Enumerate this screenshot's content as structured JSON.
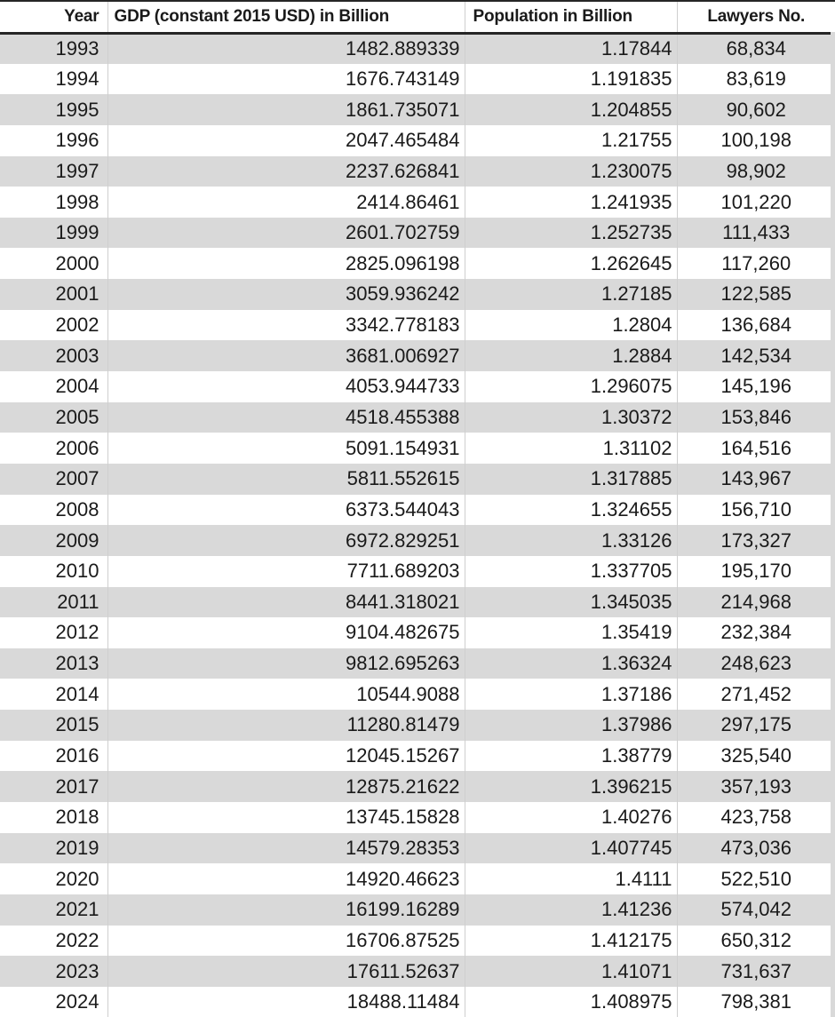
{
  "colors": {
    "band_fill": "#d9d9d9",
    "header_rule": "#262626",
    "gridline": "#cfcfcf",
    "text": "#1a1a1a"
  },
  "chart_data": {
    "type": "table",
    "columns": [
      "Year",
      "GDP (constant 2015 USD) in Billion",
      "Population in Billion",
      "Lawyers No."
    ],
    "rows": [
      [
        "1993",
        "1482.889339",
        "1.17844",
        "68,834"
      ],
      [
        "1994",
        "1676.743149",
        "1.191835",
        "83,619"
      ],
      [
        "1995",
        "1861.735071",
        "1.204855",
        "90,602"
      ],
      [
        "1996",
        "2047.465484",
        "1.21755",
        "100,198"
      ],
      [
        "1997",
        "2237.626841",
        "1.230075",
        "98,902"
      ],
      [
        "1998",
        "2414.86461",
        "1.241935",
        "101,220"
      ],
      [
        "1999",
        "2601.702759",
        "1.252735",
        "111,433"
      ],
      [
        "2000",
        "2825.096198",
        "1.262645",
        "117,260"
      ],
      [
        "2001",
        "3059.936242",
        "1.27185",
        "122,585"
      ],
      [
        "2002",
        "3342.778183",
        "1.2804",
        "136,684"
      ],
      [
        "2003",
        "3681.006927",
        "1.2884",
        "142,534"
      ],
      [
        "2004",
        "4053.944733",
        "1.296075",
        "145,196"
      ],
      [
        "2005",
        "4518.455388",
        "1.30372",
        "153,846"
      ],
      [
        "2006",
        "5091.154931",
        "1.31102",
        "164,516"
      ],
      [
        "2007",
        "5811.552615",
        "1.317885",
        "143,967"
      ],
      [
        "2008",
        "6373.544043",
        "1.324655",
        "156,710"
      ],
      [
        "2009",
        "6972.829251",
        "1.33126",
        "173,327"
      ],
      [
        "2010",
        "7711.689203",
        "1.337705",
        "195,170"
      ],
      [
        "2011",
        "8441.318021",
        "1.345035",
        "214,968"
      ],
      [
        "2012",
        "9104.482675",
        "1.35419",
        "232,384"
      ],
      [
        "2013",
        "9812.695263",
        "1.36324",
        "248,623"
      ],
      [
        "2014",
        "10544.9088",
        "1.37186",
        "271,452"
      ],
      [
        "2015",
        "11280.81479",
        "1.37986",
        "297,175"
      ],
      [
        "2016",
        "12045.15267",
        "1.38779",
        "325,540"
      ],
      [
        "2017",
        "12875.21622",
        "1.396215",
        "357,193"
      ],
      [
        "2018",
        "13745.15828",
        "1.40276",
        "423,758"
      ],
      [
        "2019",
        "14579.28353",
        "1.407745",
        "473,036"
      ],
      [
        "2020",
        "14920.46623",
        "1.4111",
        "522,510"
      ],
      [
        "2021",
        "16199.16289",
        "1.41236",
        "574,042"
      ],
      [
        "2022",
        "16706.87525",
        "1.412175",
        "650,312"
      ],
      [
        "2023",
        "17611.52637",
        "1.41071",
        "731,637"
      ],
      [
        "2024",
        "18488.11484",
        "1.408975",
        "798,381"
      ]
    ]
  }
}
